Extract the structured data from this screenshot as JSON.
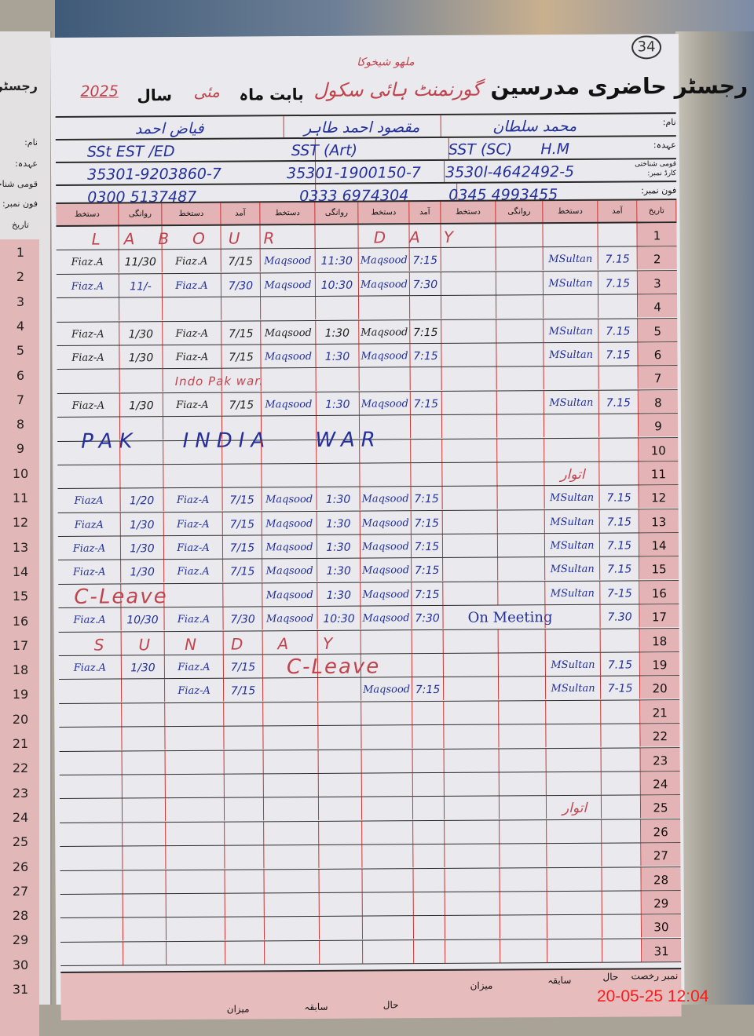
{
  "left_page": {
    "title_fragment": "رجسٹر",
    "labels": [
      "نام:",
      "عہدہ:",
      "قومی شناختی",
      "فون نمبر:"
    ],
    "date_header": "تاریخ",
    "dates": [
      "1",
      "2",
      "3",
      "4",
      "5",
      "6",
      "7",
      "8",
      "9",
      "10",
      "11",
      "12",
      "13",
      "14",
      "15",
      "16",
      "17",
      "18",
      "19",
      "20",
      "21",
      "22",
      "23",
      "24",
      "25",
      "26",
      "27",
      "28",
      "29",
      "30",
      "31"
    ]
  },
  "header": {
    "page_number": "34",
    "title": "رجسٹر حاضری مدرسین",
    "school_name": "گورنمنٹ ہائی سکول",
    "school_suffix": "ملھو شیخوکا",
    "month_label": "بابت ماہ",
    "month": "مئی",
    "year_label": "سال",
    "year": "2025"
  },
  "info": {
    "labels": {
      "name": "نام:",
      "designation": "عہدہ:",
      "cnic": "قومی شناختی کارڈ نمبر:",
      "phone": "فون نمبر:"
    },
    "teachers": [
      {
        "name": "محمد سلطان",
        "designation": "SST (SC)      H.M",
        "cnic": "3530l-4642492-5",
        "phone": "0345 4993455"
      },
      {
        "name": "مقصود احمد طاہر",
        "designation": "SST (Art)",
        "cnic": "35301-1900150-7",
        "phone": "0333 6974304"
      },
      {
        "name": "فیاض احمد",
        "designation": "SSt EST /ED",
        "cnic": "35301-9203860-7",
        "phone": "0300 5137487"
      }
    ]
  },
  "columns": [
    "دستخط",
    "روانگی",
    "دستخط",
    "آمد",
    "دستخط",
    "روانگی",
    "دستخط",
    "آمد",
    "دستخط",
    "روانگی",
    "دستخط",
    "آمد",
    "تاریخ"
  ],
  "rows": [
    {
      "date": "1",
      "note": "LABOUR DAY"
    },
    {
      "date": "2",
      "cells": [
        "Fiaz.A",
        "11/30",
        "Fiaz.A",
        "7/15",
        "Maqsood",
        "11:30",
        "Maqsood",
        "7:15",
        "",
        "",
        "MSultan",
        "7.15"
      ]
    },
    {
      "date": "3",
      "cells": [
        "Fiaz.A",
        "11/-",
        "Fiaz.A",
        "7/30",
        "Maqsood",
        "10:30",
        "Maqsood",
        "7:30",
        "",
        "",
        "MSultan",
        "7.15"
      ]
    },
    {
      "date": "4"
    },
    {
      "date": "5",
      "cells": [
        "Fiaz-A",
        "1/30",
        "Fiaz-A",
        "7/15",
        "Maqsood",
        "1:30",
        "Maqsood",
        "7:15",
        "",
        "",
        "MSultan",
        "7.15"
      ]
    },
    {
      "date": "6",
      "cells": [
        "Fiaz-A",
        "1/30",
        "Fiaz-A",
        "7/15",
        "Maqsood",
        "1:30",
        "Maqsood",
        "7:15",
        "",
        "",
        "MSultan",
        "7.15"
      ]
    },
    {
      "date": "7",
      "note": "Indo Pak war."
    },
    {
      "date": "8",
      "cells": [
        "Fiaz-A",
        "1/30",
        "Fiaz-A",
        "7/15",
        "Maqsood",
        "1:30",
        "Maqsood",
        "7:15",
        "",
        "",
        "MSultan",
        "7.15"
      ]
    },
    {
      "date": "9",
      "note": "PAK INDIA WAR"
    },
    {
      "date": "10"
    },
    {
      "date": "11",
      "note": "اتوار"
    },
    {
      "date": "12",
      "cells": [
        "FiazA",
        "1/20",
        "Fiaz-A",
        "7/15",
        "Maqsood",
        "1:30",
        "Maqsood",
        "7:15",
        "",
        "",
        "MSultan",
        "7.15"
      ]
    },
    {
      "date": "13",
      "cells": [
        "FiazA",
        "1/30",
        "Fiaz-A",
        "7/15",
        "Maqsood",
        "1:30",
        "Maqsood",
        "7:15",
        "",
        "",
        "MSultan",
        "7.15"
      ]
    },
    {
      "date": "14",
      "cells": [
        "Fiaz-A",
        "1/30",
        "Fiaz-A",
        "7/15",
        "Maqsood",
        "1:30",
        "Maqsood",
        "7:15",
        "",
        "",
        "MSultan",
        "7.15"
      ]
    },
    {
      "date": "15",
      "cells": [
        "Fiaz-A",
        "1/30",
        "Fiaz.A",
        "7/15",
        "Maqsood",
        "1:30",
        "Maqsood",
        "7:15",
        "",
        "",
        "MSultan",
        "7.15"
      ]
    },
    {
      "date": "16",
      "note": "C-Leave",
      "cells": [
        "",
        "",
        "",
        "",
        "Maqsood",
        "1:30",
        "Maqsood",
        "7:15",
        "",
        "",
        "MSultan",
        "7-15"
      ]
    },
    {
      "date": "17",
      "cells": [
        "Fiaz.A",
        "10/30",
        "Fiaz.A",
        "7/30",
        "Maqsood",
        "10:30",
        "Maqsood",
        "7:30",
        "On Meeting",
        "",
        "",
        "7.30"
      ]
    },
    {
      "date": "18",
      "note": "SUNDAY"
    },
    {
      "date": "19",
      "note": "C-Leave",
      "cells": [
        "Fiaz.A",
        "1/30",
        "Fiaz.A",
        "7/15",
        "",
        "",
        "",
        "",
        "",
        "",
        "MSultan",
        "7.15"
      ]
    },
    {
      "date": "20",
      "cells": [
        "",
        "",
        "Fiaz-A",
        "7/15",
        "",
        "",
        "Maqsood",
        "7:15",
        "",
        "",
        "MSultan",
        "7-15"
      ]
    },
    {
      "date": "21"
    },
    {
      "date": "22"
    },
    {
      "date": "23"
    },
    {
      "date": "24"
    },
    {
      "date": "25",
      "note": "اتوار"
    },
    {
      "date": "26"
    },
    {
      "date": "27"
    },
    {
      "date": "28"
    },
    {
      "date": "29"
    },
    {
      "date": "30"
    },
    {
      "date": "31"
    }
  ],
  "footer": {
    "leave_label": "نمبر رخصت",
    "current": "حال",
    "previous": "سابقہ",
    "total": "میزان"
  },
  "timestamp": "20-05-25  12:04",
  "colors": {
    "ink_blue": "#23309a",
    "ink_red": "#c0444d",
    "ink_black": "#222222",
    "pink_column": "#e3b3b5",
    "stamp_red": "#ff1a1a"
  }
}
